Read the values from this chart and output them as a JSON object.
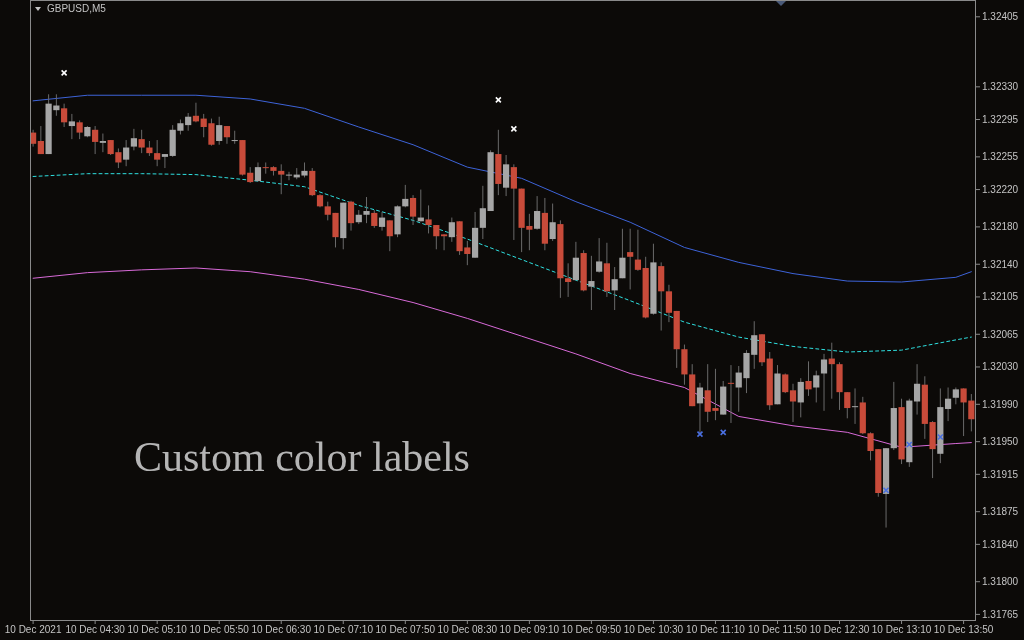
{
  "chart_data": {
    "type": "candlestick",
    "title": "GBPUSD,M5",
    "annotations": [
      "Custom color labels"
    ],
    "xlim": [
      "2021-12-10T03:48",
      "2021-12-10T13:58"
    ],
    "xticks": [
      {
        "value": "2021-12-10T03:50",
        "label": "10 Dec 2021"
      },
      {
        "value": "2021-12-10T04:30",
        "label": "10 Dec 04:30"
      },
      {
        "value": "2021-12-10T05:10",
        "label": "10 Dec 05:10"
      },
      {
        "value": "2021-12-10T05:50",
        "label": "10 Dec 05:50"
      },
      {
        "value": "2021-12-10T06:30",
        "label": "10 Dec 06:30"
      },
      {
        "value": "2021-12-10T07:10",
        "label": "10 Dec 07:10"
      },
      {
        "value": "2021-12-10T07:50",
        "label": "10 Dec 07:50"
      },
      {
        "value": "2021-12-10T08:30",
        "label": "10 Dec 08:30"
      },
      {
        "value": "2021-12-10T09:10",
        "label": "10 Dec 09:10"
      },
      {
        "value": "2021-12-10T09:50",
        "label": "10 Dec 09:50"
      },
      {
        "value": "2021-12-10T10:30",
        "label": "10 Dec 10:30"
      },
      {
        "value": "2021-12-10T11:10",
        "label": "10 Dec 11:10"
      },
      {
        "value": "2021-12-10T11:50",
        "label": "10 Dec 11:50"
      },
      {
        "value": "2021-12-10T12:30",
        "label": "10 Dec 12:30"
      },
      {
        "value": "2021-12-10T13:10",
        "label": "10 Dec 13:10"
      },
      {
        "value": "2021-12-10T13:50",
        "label": "10 Dec 13:50"
      }
    ],
    "ylim": [
      1.31759,
      1.32423
    ],
    "yticks": [
      1.32405,
      {
        "value": 1.3233,
        "label": "1.32330"
      },
      1.32295,
      1.32255,
      {
        "value": 1.3222,
        "label": "1.32220"
      },
      {
        "value": 1.3218,
        "label": "1.32180"
      },
      {
        "value": 1.3214,
        "label": "1.32140"
      },
      1.32105,
      1.32065,
      {
        "value": 1.3203,
        "label": "1.32030"
      },
      {
        "value": 1.3199,
        "label": "1.31990"
      },
      {
        "value": 1.3195,
        "label": "1.31950"
      },
      1.31915,
      1.31875,
      {
        "value": 1.3184,
        "label": "1.31840"
      },
      {
        "value": 1.318,
        "label": "1.31800"
      },
      1.31765
    ],
    "x": [
      "2021-12-10T03:50",
      "2021-12-10T03:55",
      "2021-12-10T04:00",
      "2021-12-10T04:05",
      "2021-12-10T04:10",
      "2021-12-10T04:15",
      "2021-12-10T04:20",
      "2021-12-10T04:25",
      "2021-12-10T04:30",
      "2021-12-10T04:35",
      "2021-12-10T04:40",
      "2021-12-10T04:45",
      "2021-12-10T04:50",
      "2021-12-10T04:55",
      "2021-12-10T05:00",
      "2021-12-10T05:05",
      "2021-12-10T05:10",
      "2021-12-10T05:15",
      "2021-12-10T05:20",
      "2021-12-10T05:25",
      "2021-12-10T05:30",
      "2021-12-10T05:35",
      "2021-12-10T05:40",
      "2021-12-10T05:45",
      "2021-12-10T05:50",
      "2021-12-10T05:55",
      "2021-12-10T06:00",
      "2021-12-10T06:05",
      "2021-12-10T06:10",
      "2021-12-10T06:15",
      "2021-12-10T06:20",
      "2021-12-10T06:25",
      "2021-12-10T06:30",
      "2021-12-10T06:35",
      "2021-12-10T06:40",
      "2021-12-10T06:45",
      "2021-12-10T06:50",
      "2021-12-10T06:55",
      "2021-12-10T07:00",
      "2021-12-10T07:05",
      "2021-12-10T07:10",
      "2021-12-10T07:15",
      "2021-12-10T07:20",
      "2021-12-10T07:25",
      "2021-12-10T07:30",
      "2021-12-10T07:35",
      "2021-12-10T07:40",
      "2021-12-10T07:45",
      "2021-12-10T07:50",
      "2021-12-10T07:55",
      "2021-12-10T08:00",
      "2021-12-10T08:05",
      "2021-12-10T08:10",
      "2021-12-10T08:15",
      "2021-12-10T08:20",
      "2021-12-10T08:25",
      "2021-12-10T08:30",
      "2021-12-10T08:35",
      "2021-12-10T08:40",
      "2021-12-10T08:45",
      "2021-12-10T08:50",
      "2021-12-10T08:55",
      "2021-12-10T09:00",
      "2021-12-10T09:05",
      "2021-12-10T09:10",
      "2021-12-10T09:15",
      "2021-12-10T09:20",
      "2021-12-10T09:25",
      "2021-12-10T09:30",
      "2021-12-10T09:35",
      "2021-12-10T09:40",
      "2021-12-10T09:45",
      "2021-12-10T09:50",
      "2021-12-10T09:55",
      "2021-12-10T10:00",
      "2021-12-10T10:05",
      "2021-12-10T10:10",
      "2021-12-10T10:15",
      "2021-12-10T10:20",
      "2021-12-10T10:25",
      "2021-12-10T10:30",
      "2021-12-10T10:35",
      "2021-12-10T10:40",
      "2021-12-10T10:45",
      "2021-12-10T10:50",
      "2021-12-10T10:55",
      "2021-12-10T11:00",
      "2021-12-10T11:05",
      "2021-12-10T11:10",
      "2021-12-10T11:15",
      "2021-12-10T11:20",
      "2021-12-10T11:25",
      "2021-12-10T11:30",
      "2021-12-10T11:35",
      "2021-12-10T11:40",
      "2021-12-10T11:45",
      "2021-12-10T11:50",
      "2021-12-10T11:55",
      "2021-12-10T12:00",
      "2021-12-10T12:05",
      "2021-12-10T12:10",
      "2021-12-10T12:15",
      "2021-12-10T12:20",
      "2021-12-10T12:25",
      "2021-12-10T12:30",
      "2021-12-10T12:35",
      "2021-12-10T12:40",
      "2021-12-10T12:45",
      "2021-12-10T12:50",
      "2021-12-10T12:55",
      "2021-12-10T13:00",
      "2021-12-10T13:05",
      "2021-12-10T13:10",
      "2021-12-10T13:15",
      "2021-12-10T13:20",
      "2021-12-10T13:25",
      "2021-12-10T13:30",
      "2021-12-10T13:35",
      "2021-12-10T13:40",
      "2021-12-10T13:45",
      "2021-12-10T13:50",
      "2021-12-10T13:55"
    ],
    "ohlc": [
      [
        1.32281,
        1.32284,
        1.32266,
        1.32269
      ],
      [
        1.32272,
        1.32288,
        1.32258,
        1.32258
      ],
      [
        1.32258,
        1.32322,
        1.32258,
        1.32312
      ],
      [
        1.32305,
        1.32322,
        1.32299,
        1.3231
      ],
      [
        1.32307,
        1.32312,
        1.32287,
        1.32292
      ],
      [
        1.32288,
        1.32301,
        1.32274,
        1.32293
      ],
      [
        1.32292,
        1.32294,
        1.32274,
        1.32281
      ],
      [
        1.32277,
        1.32288,
        1.32276,
        1.32287
      ],
      [
        1.32284,
        1.32288,
        1.32258,
        1.32271
      ],
      [
        1.3227,
        1.3228,
        1.3226,
        1.32272
      ],
      [
        1.32273,
        1.32273,
        1.32257,
        1.32258
      ],
      [
        1.3226,
        1.32264,
        1.32243,
        1.32249
      ],
      [
        1.32252,
        1.32273,
        1.32245,
        1.32265
      ],
      [
        1.32266,
        1.32285,
        1.32262,
        1.32275
      ],
      [
        1.32274,
        1.32284,
        1.32259,
        1.32265
      ],
      [
        1.32265,
        1.32272,
        1.32256,
        1.32259
      ],
      [
        1.32259,
        1.32273,
        1.32245,
        1.32252
      ],
      [
        1.32255,
        1.32258,
        1.32243,
        1.32258
      ],
      [
        1.32256,
        1.32289,
        1.32255,
        1.32284
      ],
      [
        1.32283,
        1.32295,
        1.32279,
        1.32291
      ],
      [
        1.32289,
        1.32302,
        1.32283,
        1.32298
      ],
      [
        1.32299,
        1.32313,
        1.32292,
        1.32293
      ],
      [
        1.32296,
        1.32301,
        1.32276,
        1.32287
      ],
      [
        1.32291,
        1.32296,
        1.32267,
        1.32268
      ],
      [
        1.32272,
        1.32298,
        1.32268,
        1.32289
      ],
      [
        1.32288,
        1.32288,
        1.32269,
        1.32276
      ],
      [
        1.32272,
        1.32283,
        1.32269,
        1.32273
      ],
      [
        1.32273,
        1.32273,
        1.32235,
        1.32236
      ],
      [
        1.32238,
        1.32244,
        1.32227,
        1.32228
      ],
      [
        1.32229,
        1.32249,
        1.32229,
        1.32244
      ],
      [
        1.32244,
        1.32249,
        1.32237,
        1.32243
      ],
      [
        1.32244,
        1.32245,
        1.32235,
        1.3224
      ],
      [
        1.3224,
        1.32247,
        1.32215,
        1.32236
      ],
      [
        1.32235,
        1.32239,
        1.3223,
        1.32236
      ],
      [
        1.32233,
        1.32243,
        1.32231,
        1.32236
      ],
      [
        1.32235,
        1.32249,
        1.32233,
        1.3224
      ],
      [
        1.3224,
        1.32243,
        1.32213,
        1.32214
      ],
      [
        1.32214,
        1.32215,
        1.32201,
        1.32202
      ],
      [
        1.32202,
        1.32207,
        1.32187,
        1.32193
      ],
      [
        1.32195,
        1.32195,
        1.32158,
        1.32169
      ],
      [
        1.32168,
        1.32206,
        1.32156,
        1.32206
      ],
      [
        1.32207,
        1.32208,
        1.32176,
        1.32184
      ],
      [
        1.32185,
        1.32198,
        1.32183,
        1.32193
      ],
      [
        1.32193,
        1.32212,
        1.32184,
        1.32197
      ],
      [
        1.32195,
        1.32198,
        1.32179,
        1.32181
      ],
      [
        1.3218,
        1.32196,
        1.32176,
        1.3219
      ],
      [
        1.32187,
        1.32187,
        1.32154,
        1.3217
      ],
      [
        1.32172,
        1.32203,
        1.32169,
        1.32202
      ],
      [
        1.32202,
        1.32225,
        1.32201,
        1.3221
      ],
      [
        1.32211,
        1.32214,
        1.32182,
        1.32191
      ],
      [
        1.32186,
        1.3222,
        1.32186,
        1.3219
      ],
      [
        1.32188,
        1.32203,
        1.32173,
        1.32182
      ],
      [
        1.32182,
        1.32182,
        1.32156,
        1.3217
      ],
      [
        1.32172,
        1.32172,
        1.32155,
        1.3217
      ],
      [
        1.32169,
        1.3219,
        1.32164,
        1.32185
      ],
      [
        1.32186,
        1.32186,
        1.3215,
        1.32154
      ],
      [
        1.32158,
        1.32165,
        1.32139,
        1.32151
      ],
      [
        1.32147,
        1.32196,
        1.32147,
        1.32179
      ],
      [
        1.32179,
        1.32224,
        1.32167,
        1.322
      ],
      [
        1.32197,
        1.32262,
        1.32197,
        1.3226
      ],
      [
        1.32258,
        1.32284,
        1.32214,
        1.32226
      ],
      [
        1.32222,
        1.32257,
        1.32213,
        1.32247
      ],
      [
        1.32244,
        1.32247,
        1.32166,
        1.32221
      ],
      [
        1.32221,
        1.32221,
        1.32153,
        1.32179
      ],
      [
        1.32181,
        1.32194,
        1.32155,
        1.32177
      ],
      [
        1.32178,
        1.32213,
        1.32177,
        1.32197
      ],
      [
        1.32195,
        1.32211,
        1.32155,
        1.32162
      ],
      [
        1.32167,
        1.32205,
        1.32165,
        1.32185
      ],
      [
        1.32183,
        1.32187,
        1.32104,
        1.32125
      ],
      [
        1.32125,
        1.32141,
        1.32105,
        1.32121
      ],
      [
        1.32123,
        1.32164,
        1.32123,
        1.32147
      ],
      [
        1.32152,
        1.32155,
        1.32111,
        1.32112
      ],
      [
        1.32116,
        1.32149,
        1.32091,
        1.32122
      ],
      [
        1.32132,
        1.32168,
        1.32131,
        1.32143
      ],
      [
        1.32141,
        1.32163,
        1.32105,
        1.32111
      ],
      [
        1.32112,
        1.32137,
        1.32091,
        1.32124
      ],
      [
        1.32125,
        1.32178,
        1.32125,
        1.32147
      ],
      [
        1.32153,
        1.32178,
        1.32113,
        1.32148
      ],
      [
        1.32145,
        1.32177,
        1.32133,
        1.32134
      ],
      [
        1.32136,
        1.32148,
        1.32082,
        1.32083
      ],
      [
        1.32087,
        1.32162,
        1.32086,
        1.32142
      ],
      [
        1.32138,
        1.32142,
        1.32069,
        1.32111
      ],
      [
        1.32111,
        1.32118,
        1.32078,
        1.32088
      ],
      [
        1.3209,
        1.3209,
        1.32029,
        1.32049
      ],
      [
        1.32049,
        1.32054,
        1.32011,
        1.32022
      ],
      [
        1.32022,
        1.32033,
        1.31988,
        1.31988
      ],
      [
        1.31991,
        1.32013,
        1.31959,
        1.32008
      ],
      [
        1.32005,
        1.32033,
        1.31971,
        1.31982
      ],
      [
        1.31986,
        1.32028,
        1.31973,
        1.31983
      ],
      [
        1.31979,
        1.32015,
        1.31979,
        1.32009
      ],
      [
        1.32013,
        1.32032,
        1.3197,
        1.32012
      ],
      [
        1.32008,
        1.32031,
        1.31982,
        1.32024
      ],
      [
        1.32018,
        1.32048,
        1.32002,
        1.32045
      ],
      [
        1.32043,
        1.32079,
        1.32028,
        1.32064
      ],
      [
        1.32065,
        1.32065,
        1.32031,
        1.32035
      ],
      [
        1.32039,
        1.32046,
        1.31984,
        1.31989
      ],
      [
        1.3199,
        1.32032,
        1.3199,
        1.32023
      ],
      [
        1.32022,
        1.32023,
        1.32002,
        1.32003
      ],
      [
        1.32005,
        1.32012,
        1.31971,
        1.31993
      ],
      [
        1.31992,
        1.32018,
        1.31976,
        1.32014
      ],
      [
        1.32015,
        1.32036,
        1.31999,
        1.32006
      ],
      [
        1.32008,
        1.32026,
        1.31992,
        1.32021
      ],
      [
        1.32023,
        1.32044,
        1.31983,
        1.32038
      ],
      [
        1.32039,
        1.32056,
        1.31996,
        1.32033
      ],
      [
        1.32033,
        1.32035,
        1.31984,
        1.32003
      ],
      [
        1.32003,
        1.32003,
        1.31975,
        1.31986
      ],
      [
        1.31987,
        1.32007,
        1.31969,
        1.31988
      ],
      [
        1.31992,
        1.31998,
        1.31958,
        1.31959
      ],
      [
        1.31959,
        1.3196,
        1.3193,
        1.3194
      ],
      [
        1.31942,
        1.31942,
        1.31891,
        1.31895
      ],
      [
        1.31894,
        1.31943,
        1.31858,
        1.31943
      ],
      [
        1.31943,
        1.32014,
        1.31941,
        1.31986
      ],
      [
        1.31987,
        1.31996,
        1.31926,
        1.31931
      ],
      [
        1.31928,
        1.31996,
        1.31923,
        1.31994
      ],
      [
        1.31993,
        1.32033,
        1.31979,
        1.32012
      ],
      [
        1.32011,
        1.3202,
        1.31953,
        1.31969
      ],
      [
        1.31971,
        1.31972,
        1.31911,
        1.31942
      ],
      [
        1.31937,
        1.32007,
        1.31927,
        1.31987
      ],
      [
        1.31985,
        1.32008,
        1.31972,
        1.31996
      ],
      [
        1.31997,
        1.32008,
        1.3199,
        1.32006
      ],
      [
        1.32007,
        1.32007,
        1.31956,
        1.31992
      ],
      [
        1.31994,
        1.32001,
        1.31961,
        1.31974
      ]
    ],
    "colors": [
      "#c84b3a",
      "#c84b3a",
      "#a6a6a6",
      "#a6a6a6",
      "#c84b3a",
      "#a6a6a6",
      "#c84b3a",
      "#a6a6a6",
      "#c84b3a",
      "#a6a6a6",
      "#c84b3a",
      "#c84b3a",
      "#a6a6a6",
      "#a6a6a6",
      "#c84b3a",
      "#c84b3a",
      "#c84b3a",
      "#a6a6a6",
      "#a6a6a6",
      "#a6a6a6",
      "#a6a6a6",
      "#c84b3a",
      "#c84b3a",
      "#c84b3a",
      "#a6a6a6",
      "#c84b3a",
      "#a6a6a6",
      "#c84b3a",
      "#c84b3a",
      "#a6a6a6",
      "#c84b3a",
      "#c84b3a",
      "#c84b3a",
      "#a6a6a6",
      "#a6a6a6",
      "#a6a6a6",
      "#c84b3a",
      "#c84b3a",
      "#c84b3a",
      "#c84b3a",
      "#a6a6a6",
      "#c84b3a",
      "#a6a6a6",
      "#a6a6a6",
      "#c84b3a",
      "#a6a6a6",
      "#c84b3a",
      "#a6a6a6",
      "#a6a6a6",
      "#c84b3a",
      "#a6a6a6",
      "#c84b3a",
      "#c84b3a",
      "#c84b3a",
      "#a6a6a6",
      "#c84b3a",
      "#c84b3a",
      "#a6a6a6",
      "#a6a6a6",
      "#a6a6a6",
      "#c84b3a",
      "#a6a6a6",
      "#c84b3a",
      "#c84b3a",
      "#c84b3a",
      "#a6a6a6",
      "#c84b3a",
      "#a6a6a6",
      "#c84b3a",
      "#c84b3a",
      "#a6a6a6",
      "#c84b3a",
      "#a6a6a6",
      "#a6a6a6",
      "#c84b3a",
      "#a6a6a6",
      "#a6a6a6",
      "#c84b3a",
      "#c84b3a",
      "#c84b3a",
      "#a6a6a6",
      "#c84b3a",
      "#c84b3a",
      "#c84b3a",
      "#c84b3a",
      "#c84b3a",
      "#a6a6a6",
      "#c84b3a",
      "#c84b3a",
      "#a6a6a6",
      "#c84b3a",
      "#a6a6a6",
      "#a6a6a6",
      "#a6a6a6",
      "#c84b3a",
      "#c84b3a",
      "#a6a6a6",
      "#c84b3a",
      "#c84b3a",
      "#a6a6a6",
      "#c84b3a",
      "#a6a6a6",
      "#a6a6a6",
      "#c84b3a",
      "#c84b3a",
      "#c84b3a",
      "#a6a6a6",
      "#c84b3a",
      "#c84b3a",
      "#c84b3a",
      "#a6a6a6",
      "#a6a6a6",
      "#c84b3a",
      "#a6a6a6",
      "#a6a6a6",
      "#c84b3a",
      "#c84b3a",
      "#a6a6a6",
      "#a6a6a6",
      "#a6a6a6",
      "#c84b3a",
      "#c84b3a"
    ],
    "series": [
      {
        "type": "line",
        "color": "#3d63d8",
        "line_style": "solid",
        "x": [
          "2021-12-10T03:50",
          "2021-12-10T04:25",
          "2021-12-10T05:00",
          "2021-12-10T05:35",
          "2021-12-10T06:10",
          "2021-12-10T06:45",
          "2021-12-10T07:20",
          "2021-12-10T07:55",
          "2021-12-10T08:30",
          "2021-12-10T09:05",
          "2021-12-10T09:40",
          "2021-12-10T10:15",
          "2021-12-10T10:50",
          "2021-12-10T11:25",
          "2021-12-10T12:00",
          "2021-12-10T12:35",
          "2021-12-10T13:10",
          "2021-12-10T13:45",
          "2021-12-10T13:55"
        ],
        "values": [
          1.32315,
          1.32321,
          1.32321,
          1.32321,
          1.32317,
          1.32307,
          1.32287,
          1.32268,
          1.32244,
          1.32232,
          1.32207,
          1.32185,
          1.32158,
          1.32142,
          1.3213,
          1.32122,
          1.32121,
          1.32126,
          1.32132
        ]
      },
      {
        "type": "line",
        "color": "#2ee0e0",
        "line_style": "dashed",
        "x": [
          "2021-12-10T03:50",
          "2021-12-10T04:25",
          "2021-12-10T05:00",
          "2021-12-10T05:35",
          "2021-12-10T06:10",
          "2021-12-10T06:45",
          "2021-12-10T07:20",
          "2021-12-10T07:55",
          "2021-12-10T08:30",
          "2021-12-10T09:05",
          "2021-12-10T09:40",
          "2021-12-10T10:15",
          "2021-12-10T10:50",
          "2021-12-10T11:25",
          "2021-12-10T12:00",
          "2021-12-10T12:35",
          "2021-12-10T13:10",
          "2021-12-10T13:45",
          "2021-12-10T13:55"
        ],
        "values": [
          1.32234,
          1.32237,
          1.32237,
          1.32236,
          1.3223,
          1.32223,
          1.32203,
          1.32187,
          1.32167,
          1.32145,
          1.32123,
          1.32101,
          1.32078,
          1.32062,
          1.32052,
          1.32046,
          1.32048,
          1.32059,
          1.32062
        ]
      },
      {
        "type": "line",
        "color": "#d86ad8",
        "line_style": "solid",
        "x": [
          "2021-12-10T03:50",
          "2021-12-10T04:25",
          "2021-12-10T05:00",
          "2021-12-10T05:35",
          "2021-12-10T06:10",
          "2021-12-10T06:45",
          "2021-12-10T07:20",
          "2021-12-10T07:55",
          "2021-12-10T08:30",
          "2021-12-10T09:05",
          "2021-12-10T09:40",
          "2021-12-10T10:15",
          "2021-12-10T10:50",
          "2021-12-10T11:25",
          "2021-12-10T12:00",
          "2021-12-10T12:35",
          "2021-12-10T13:10",
          "2021-12-10T13:45",
          "2021-12-10T13:55"
        ],
        "values": [
          1.32125,
          1.32131,
          1.32134,
          1.32136,
          1.32132,
          1.32124,
          1.32113,
          1.32099,
          1.32082,
          1.32063,
          1.32044,
          1.32023,
          1.32008,
          1.31977,
          1.31967,
          1.3196,
          1.31944,
          1.31948,
          1.31949
        ]
      },
      {
        "type": "scatter",
        "color": "#ffffff",
        "marker": "cross",
        "x": [
          "2021-12-10T04:10",
          "2021-12-10T08:50",
          "2021-12-10T09:00"
        ],
        "values": [
          1.32345,
          1.32316,
          1.32285
        ]
      },
      {
        "type": "scatter",
        "color": "#4a6fe0",
        "marker": "cross",
        "x": [
          "2021-12-10T11:00",
          "2021-12-10T11:15",
          "2021-12-10T13:00",
          "2021-12-10T13:15",
          "2021-12-10T13:35"
        ],
        "values": [
          1.31958,
          1.3196,
          1.31898,
          1.31947,
          1.31955
        ]
      }
    ]
  }
}
